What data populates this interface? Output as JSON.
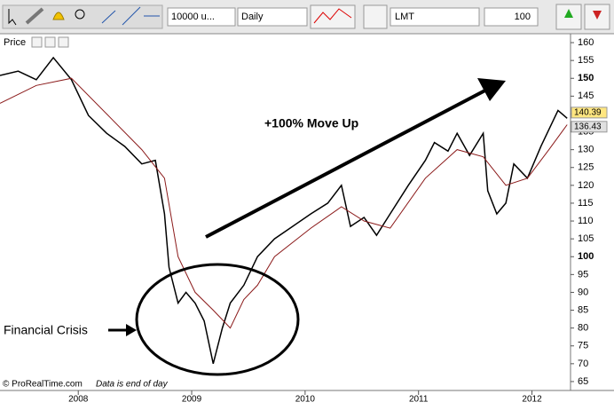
{
  "toolbar": {
    "quantity": "10000 u...",
    "period": "Daily",
    "order_type": "LMT",
    "order_size": "100"
  },
  "chart_data": {
    "type": "line",
    "panel_label": "Price",
    "annotations": [
      "+100% Move Up",
      "Financial Crisis"
    ],
    "footer": [
      "© ProRealTime.com",
      "Data is end of day"
    ],
    "series": [
      {
        "color": "#000000",
        "x": [
          2007.31,
          2007.47,
          2007.63,
          2007.78,
          2007.94,
          2008.09,
          2008.25,
          2008.41,
          2008.56,
          2008.68,
          2008.76,
          2008.8,
          2008.88,
          2008.95,
          2009.03,
          2009.11,
          2009.19,
          2009.27,
          2009.34,
          2009.46,
          2009.58,
          2009.73,
          2009.89,
          2010.05,
          2010.2,
          2010.32,
          2010.4,
          2010.52,
          2010.63,
          2010.75,
          2010.91,
          2011.06,
          2011.14,
          2011.26,
          2011.34,
          2011.45,
          2011.57,
          2011.61,
          2011.69,
          2011.77,
          2011.84,
          2011.96,
          2012.08,
          2012.23,
          2012.31
        ],
        "values": [
          150.8,
          152,
          149.6,
          155.8,
          149.6,
          139.6,
          134.6,
          130.9,
          126,
          127,
          112,
          97,
          87,
          90,
          87,
          82,
          70,
          80,
          87,
          92,
          100,
          105,
          108.5,
          112,
          115,
          120,
          108.5,
          111,
          106,
          112,
          120,
          127,
          132,
          129.6,
          134.6,
          128.4,
          134.6,
          118.5,
          112,
          115,
          126,
          122,
          131,
          141,
          138.8
        ]
      },
      {
        "color": "#8b1a1a",
        "x": [
          2007.31,
          2007.63,
          2007.94,
          2008.25,
          2008.56,
          2008.76,
          2008.88,
          2009.03,
          2009.19,
          2009.34,
          2009.46,
          2009.58,
          2009.73,
          2010.05,
          2010.32,
          2010.52,
          2010.75,
          2011.06,
          2011.34,
          2011.57,
          2011.77,
          2011.96,
          2012.15,
          2012.31
        ],
        "values": [
          143,
          148,
          150,
          140,
          130,
          122,
          100,
          90,
          85,
          80,
          88,
          92,
          100,
          108,
          114,
          110,
          108,
          122,
          130,
          128,
          120,
          122,
          130,
          137
        ]
      }
    ],
    "price_labels": [
      140.39,
      136.43
    ],
    "xlim": [
      2007.31,
      2012.34
    ],
    "xticks": [
      2008,
      2009,
      2010,
      2011,
      2012
    ],
    "ylim": [
      62.5,
      162
    ],
    "yticks": [
      65,
      70,
      75,
      80,
      85,
      90,
      95,
      100,
      105,
      110,
      115,
      120,
      125,
      130,
      135,
      140,
      145,
      150,
      155,
      160
    ],
    "bold_yticks": [
      100,
      150
    ],
    "grid": false
  }
}
